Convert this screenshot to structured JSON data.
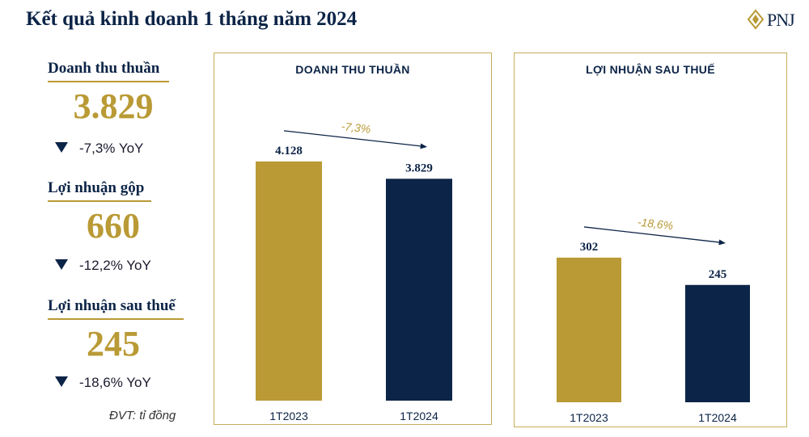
{
  "title": "Kết quả kinh doanh 1 tháng năm 2024",
  "logo_text": "PNJ",
  "kpis": [
    {
      "label": "Doanh thu thuần",
      "value": "3.829",
      "change": "-7,3% YoY"
    },
    {
      "label": "Lợi nhuận gộp",
      "value": "660",
      "change": "-12,2% YoY"
    },
    {
      "label": "Lợi nhuận sau thuế",
      "value": "245",
      "change": "-18,6% YoY"
    }
  ],
  "unit_note": "ĐVT: tỉ đồng",
  "colors": {
    "gold": "#b99a35",
    "navy": "#0c2447",
    "border": "#c9ad5a"
  },
  "chart_data": [
    {
      "type": "bar",
      "title": "DOANH THU THUẦN",
      "categories": [
        "1T2023",
        "1T2024"
      ],
      "values": [
        4128,
        3829
      ],
      "value_labels": [
        "4.128",
        "3.829"
      ],
      "change_label": "-7,3%",
      "ylim": [
        0,
        4600
      ]
    },
    {
      "type": "bar",
      "title": "LỢI NHUẬN SAU THUẾ",
      "categories": [
        "1T2023",
        "1T2024"
      ],
      "values": [
        302,
        245
      ],
      "value_labels": [
        "302",
        "245"
      ],
      "change_label": "-18,6%",
      "ylim": [
        0,
        560
      ]
    }
  ]
}
